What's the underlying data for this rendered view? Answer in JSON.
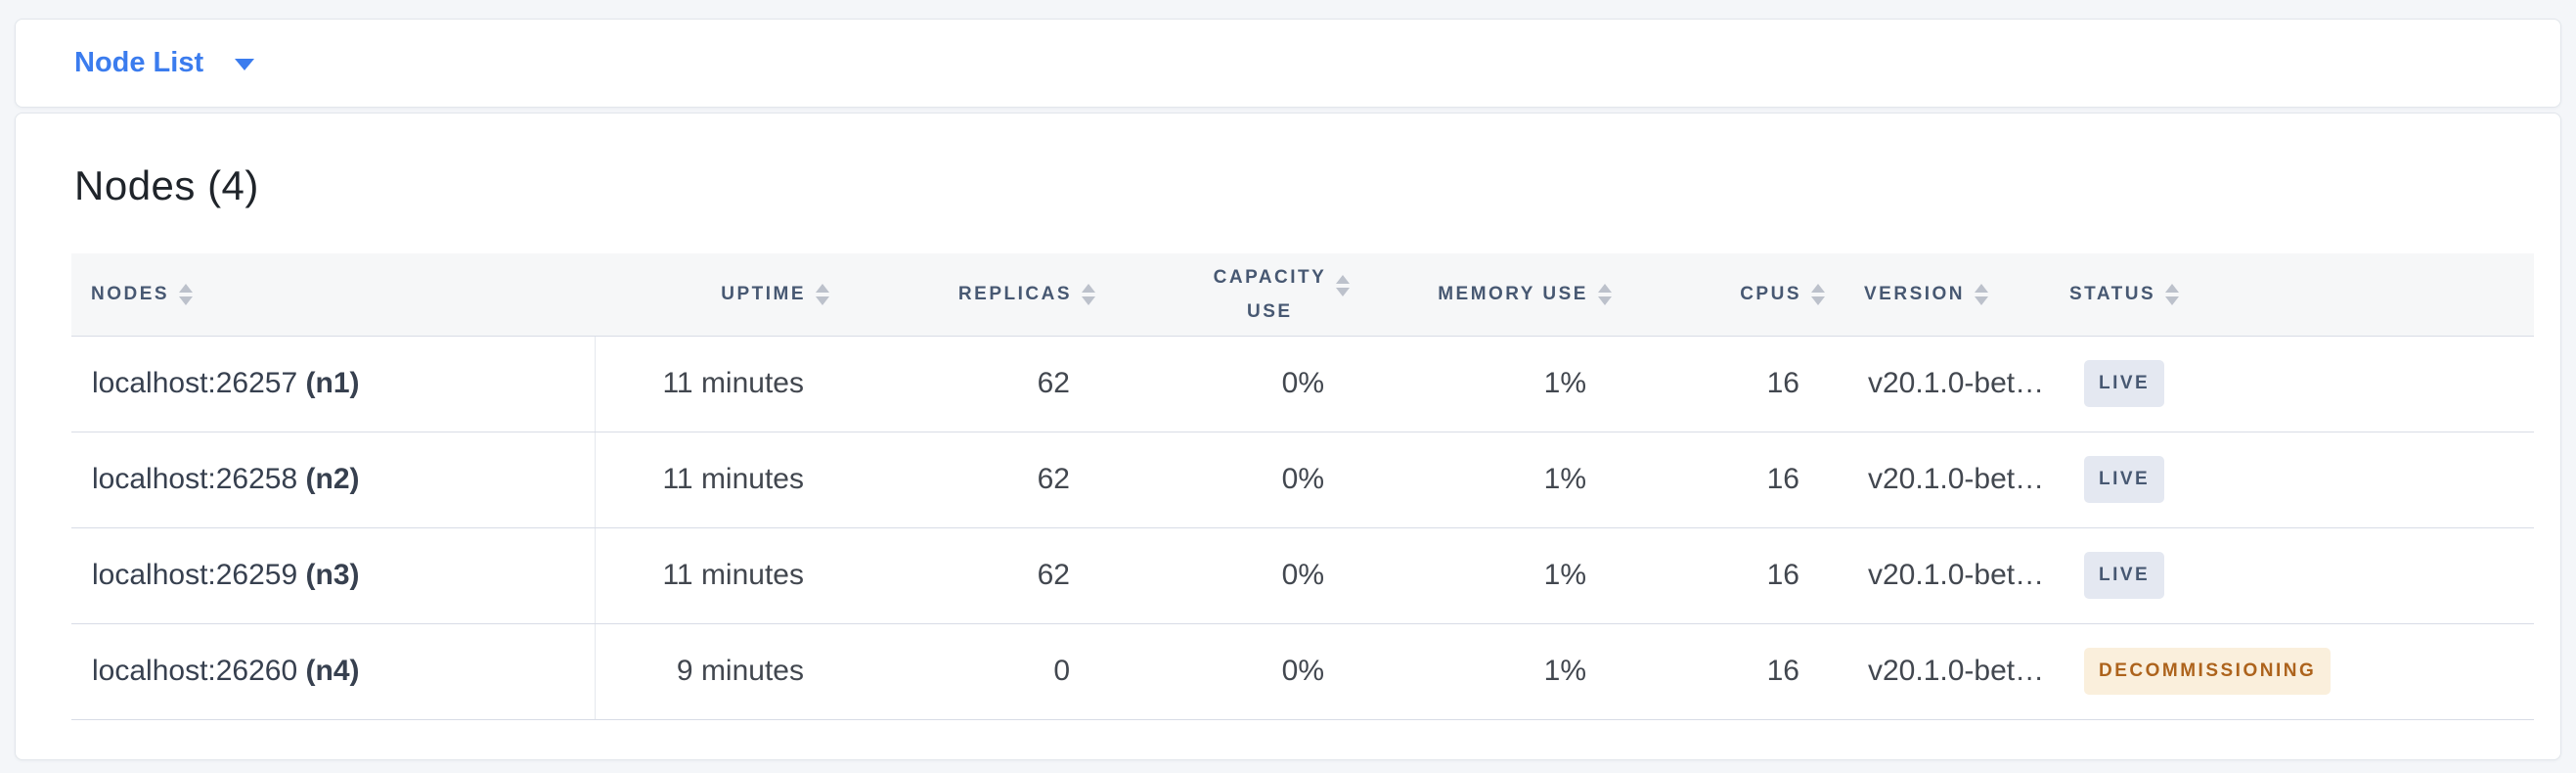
{
  "page": {
    "background_color": "#f4f6f9",
    "accent_color": "#3b7cee"
  },
  "selector": {
    "label": "Node List",
    "caret_icon": "caret-down-icon"
  },
  "summary": {
    "title": "Nodes (4)"
  },
  "table": {
    "columns": [
      {
        "key": "nodes",
        "label": "NODES",
        "align": "left",
        "sortable": true,
        "wrap": false
      },
      {
        "key": "uptime",
        "label": "UPTIME",
        "align": "right",
        "sortable": true,
        "wrap": false
      },
      {
        "key": "replicas",
        "label": "REPLICAS",
        "align": "right",
        "sortable": true,
        "wrap": false
      },
      {
        "key": "capacity_use",
        "label": "CAPACITY USE",
        "align": "right",
        "sortable": true,
        "wrap": true
      },
      {
        "key": "memory_use",
        "label": "MEMORY USE",
        "align": "right",
        "sortable": true,
        "wrap": false
      },
      {
        "key": "cpus",
        "label": "CPUS",
        "align": "right",
        "sortable": true,
        "wrap": false
      },
      {
        "key": "version",
        "label": "VERSION",
        "align": "left",
        "sortable": true,
        "wrap": false
      },
      {
        "key": "status",
        "label": "STATUS",
        "align": "left",
        "sortable": true,
        "wrap": false
      }
    ],
    "rows": [
      {
        "address": "localhost:26257",
        "node_id": "(n1)",
        "uptime": "11 minutes",
        "replicas": "62",
        "capacity_use": "0%",
        "memory_use": "1%",
        "cpus": "16",
        "version": "v20.1.0-bet…",
        "status": "LIVE",
        "status_type": "live"
      },
      {
        "address": "localhost:26258",
        "node_id": "(n2)",
        "uptime": "11 minutes",
        "replicas": "62",
        "capacity_use": "0%",
        "memory_use": "1%",
        "cpus": "16",
        "version": "v20.1.0-bet…",
        "status": "LIVE",
        "status_type": "live"
      },
      {
        "address": "localhost:26259",
        "node_id": "(n3)",
        "uptime": "11 minutes",
        "replicas": "62",
        "capacity_use": "0%",
        "memory_use": "1%",
        "cpus": "16",
        "version": "v20.1.0-bet…",
        "status": "LIVE",
        "status_type": "live"
      },
      {
        "address": "localhost:26260",
        "node_id": "(n4)",
        "uptime": "9 minutes",
        "replicas": "0",
        "capacity_use": "0%",
        "memory_use": "1%",
        "cpus": "16",
        "version": "v20.1.0-bet…",
        "status": "DECOMMISSIONING",
        "status_type": "decommissioning"
      }
    ],
    "status_colors": {
      "live": {
        "background": "#e4e8f1",
        "text": "#475872"
      },
      "decommissioning": {
        "background": "#faefdc",
        "text": "#ad631c"
      }
    }
  }
}
